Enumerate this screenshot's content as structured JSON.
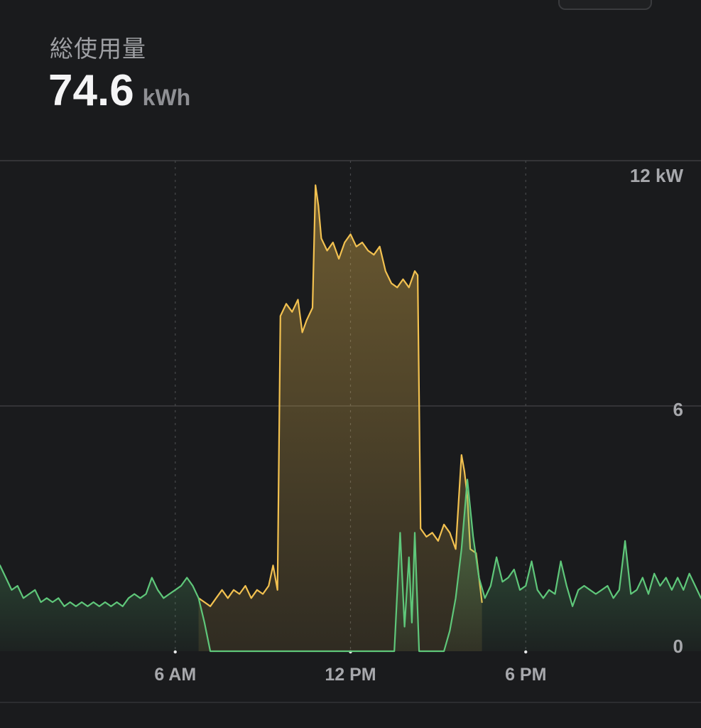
{
  "header": {
    "label": "総使用量",
    "value": "74.6",
    "unit": "kWh"
  },
  "colors": {
    "background": "#1a1b1d",
    "usage_line": "#f2c150",
    "solar_line": "#5fc77a",
    "grid": "#3c3d40",
    "tick_text": "#a7a8ac"
  },
  "chart_data": {
    "type": "area",
    "x_unit": "hour",
    "xlim": [
      0,
      24
    ],
    "ylim": [
      0,
      12
    ],
    "x_ticks": [
      {
        "value": 6,
        "label": "6 AM"
      },
      {
        "value": 12,
        "label": "12 PM"
      },
      {
        "value": 18,
        "label": "6 PM"
      }
    ],
    "y_ticks": [
      {
        "value": 12,
        "label": "12 kW"
      },
      {
        "value": 6,
        "label": "6"
      },
      {
        "value": 0,
        "label": "0"
      }
    ],
    "series": [
      {
        "id": "usage",
        "color": "#f2c150",
        "points": [
          [
            6.8,
            1.3
          ],
          [
            7.0,
            1.2
          ],
          [
            7.2,
            1.1
          ],
          [
            7.4,
            1.3
          ],
          [
            7.6,
            1.5
          ],
          [
            7.8,
            1.3
          ],
          [
            8.0,
            1.5
          ],
          [
            8.2,
            1.4
          ],
          [
            8.4,
            1.6
          ],
          [
            8.6,
            1.3
          ],
          [
            8.8,
            1.5
          ],
          [
            9.0,
            1.4
          ],
          [
            9.2,
            1.6
          ],
          [
            9.35,
            2.1
          ],
          [
            9.5,
            1.5
          ],
          [
            9.6,
            8.2
          ],
          [
            9.8,
            8.5
          ],
          [
            10.0,
            8.3
          ],
          [
            10.2,
            8.6
          ],
          [
            10.35,
            7.8
          ],
          [
            10.5,
            8.1
          ],
          [
            10.7,
            8.4
          ],
          [
            10.8,
            11.4
          ],
          [
            10.9,
            10.9
          ],
          [
            11.0,
            10.1
          ],
          [
            11.2,
            9.8
          ],
          [
            11.4,
            10.0
          ],
          [
            11.6,
            9.6
          ],
          [
            11.8,
            10.0
          ],
          [
            12.0,
            10.2
          ],
          [
            12.2,
            9.9
          ],
          [
            12.4,
            10.0
          ],
          [
            12.6,
            9.8
          ],
          [
            12.8,
            9.7
          ],
          [
            13.0,
            9.9
          ],
          [
            13.2,
            9.3
          ],
          [
            13.4,
            9.0
          ],
          [
            13.6,
            8.9
          ],
          [
            13.8,
            9.1
          ],
          [
            14.0,
            8.9
          ],
          [
            14.2,
            9.3
          ],
          [
            14.3,
            9.2
          ],
          [
            14.4,
            3.0
          ],
          [
            14.6,
            2.8
          ],
          [
            14.8,
            2.9
          ],
          [
            15.0,
            2.7
          ],
          [
            15.2,
            3.1
          ],
          [
            15.4,
            2.9
          ],
          [
            15.6,
            2.5
          ],
          [
            15.8,
            4.8
          ],
          [
            15.9,
            4.4
          ],
          [
            16.0,
            3.8
          ],
          [
            16.1,
            2.5
          ],
          [
            16.3,
            2.4
          ],
          [
            16.5,
            1.2
          ]
        ]
      },
      {
        "id": "solar",
        "color": "#5fc77a",
        "points": [
          [
            0.0,
            2.1
          ],
          [
            0.2,
            1.8
          ],
          [
            0.4,
            1.5
          ],
          [
            0.6,
            1.6
          ],
          [
            0.8,
            1.3
          ],
          [
            1.0,
            1.4
          ],
          [
            1.2,
            1.5
          ],
          [
            1.4,
            1.2
          ],
          [
            1.6,
            1.3
          ],
          [
            1.8,
            1.2
          ],
          [
            2.0,
            1.3
          ],
          [
            2.2,
            1.1
          ],
          [
            2.4,
            1.2
          ],
          [
            2.6,
            1.1
          ],
          [
            2.8,
            1.2
          ],
          [
            3.0,
            1.1
          ],
          [
            3.2,
            1.2
          ],
          [
            3.4,
            1.1
          ],
          [
            3.6,
            1.2
          ],
          [
            3.8,
            1.1
          ],
          [
            4.0,
            1.2
          ],
          [
            4.2,
            1.1
          ],
          [
            4.4,
            1.3
          ],
          [
            4.6,
            1.4
          ],
          [
            4.8,
            1.3
          ],
          [
            5.0,
            1.4
          ],
          [
            5.2,
            1.8
          ],
          [
            5.4,
            1.5
          ],
          [
            5.6,
            1.3
          ],
          [
            5.8,
            1.4
          ],
          [
            6.0,
            1.5
          ],
          [
            6.2,
            1.6
          ],
          [
            6.4,
            1.8
          ],
          [
            6.6,
            1.6
          ],
          [
            6.8,
            1.3
          ],
          [
            7.0,
            0.7
          ],
          [
            7.2,
            0.0
          ],
          [
            13.5,
            0.0
          ],
          [
            13.7,
            2.9
          ],
          [
            13.85,
            0.6
          ],
          [
            14.0,
            2.3
          ],
          [
            14.1,
            0.7
          ],
          [
            14.2,
            2.9
          ],
          [
            14.35,
            0.0
          ],
          [
            15.2,
            0.0
          ],
          [
            15.4,
            0.5
          ],
          [
            15.6,
            1.3
          ],
          [
            15.8,
            2.5
          ],
          [
            16.0,
            4.2
          ],
          [
            16.2,
            2.8
          ],
          [
            16.4,
            1.8
          ],
          [
            16.6,
            1.3
          ],
          [
            16.8,
            1.6
          ],
          [
            17.0,
            2.3
          ],
          [
            17.2,
            1.7
          ],
          [
            17.4,
            1.8
          ],
          [
            17.6,
            2.0
          ],
          [
            17.8,
            1.5
          ],
          [
            18.0,
            1.6
          ],
          [
            18.2,
            2.2
          ],
          [
            18.4,
            1.5
          ],
          [
            18.6,
            1.3
          ],
          [
            18.8,
            1.5
          ],
          [
            19.0,
            1.4
          ],
          [
            19.2,
            2.2
          ],
          [
            19.4,
            1.6
          ],
          [
            19.6,
            1.1
          ],
          [
            19.8,
            1.5
          ],
          [
            20.0,
            1.6
          ],
          [
            20.2,
            1.5
          ],
          [
            20.4,
            1.4
          ],
          [
            20.6,
            1.5
          ],
          [
            20.8,
            1.6
          ],
          [
            21.0,
            1.3
          ],
          [
            21.2,
            1.5
          ],
          [
            21.4,
            2.7
          ],
          [
            21.6,
            1.4
          ],
          [
            21.8,
            1.5
          ],
          [
            22.0,
            1.8
          ],
          [
            22.2,
            1.4
          ],
          [
            22.4,
            1.9
          ],
          [
            22.6,
            1.6
          ],
          [
            22.8,
            1.8
          ],
          [
            23.0,
            1.5
          ],
          [
            23.2,
            1.8
          ],
          [
            23.4,
            1.5
          ],
          [
            23.6,
            1.9
          ],
          [
            23.8,
            1.6
          ],
          [
            24.0,
            1.3
          ]
        ]
      }
    ]
  }
}
